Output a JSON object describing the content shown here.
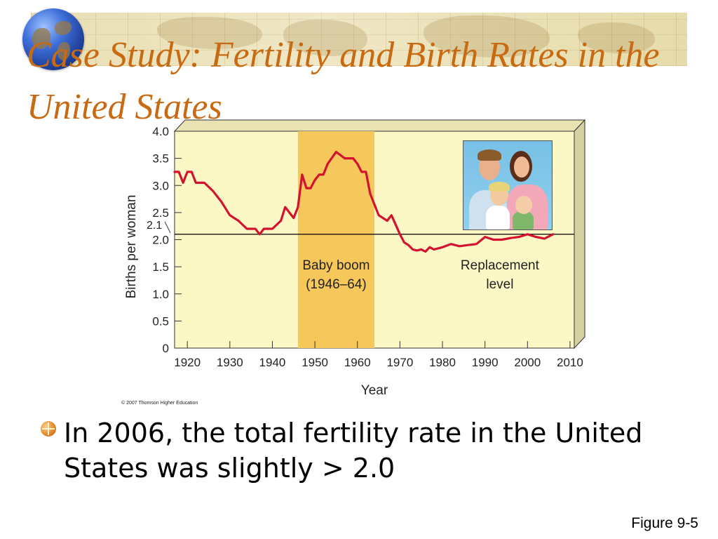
{
  "slide": {
    "title": "Case Study: Fertility and Birth Rates in the United States",
    "bullet": "In 2006, the total fertility rate in the United States was slightly > 2.0",
    "figure_label": "Figure 9-5",
    "copyright": "© 2007 Thomson Higher Education"
  },
  "colors": {
    "title": "#c86a12",
    "plot_background": "#fcf8c6",
    "baby_boom_band": "#f6c85c",
    "series_line": "#d2122e",
    "replacement_line": "#000000"
  },
  "icons": {
    "globe": "globe-icon",
    "bullet": "bullet-icon"
  },
  "chart_data": {
    "type": "line",
    "title": "",
    "xlabel": "Year",
    "ylabel": "Births per woman",
    "xlim": [
      1917,
      2011
    ],
    "ylim": [
      0,
      4.0
    ],
    "x_ticks": [
      1920,
      1930,
      1940,
      1950,
      1960,
      1970,
      1980,
      1990,
      2000,
      2010
    ],
    "y_ticks": [
      {
        "value": 0,
        "label": "0"
      },
      {
        "value": 0.5,
        "label": "0.5"
      },
      {
        "value": 1.0,
        "label": "1.0"
      },
      {
        "value": 1.5,
        "label": "1.5"
      },
      {
        "value": 2.0,
        "label": "2.0"
      },
      {
        "value": 2.5,
        "label": "2.5"
      },
      {
        "value": 3.0,
        "label": "3.0"
      },
      {
        "value": 3.5,
        "label": "3.5"
      },
      {
        "value": 4.0,
        "label": "4.0"
      }
    ],
    "grid": false,
    "series": [
      {
        "x": [
          1917,
          1918,
          1919,
          1920,
          1921,
          1922,
          1924,
          1926,
          1928,
          1930,
          1932,
          1934,
          1936,
          1937,
          1938,
          1940,
          1942,
          1943,
          1945,
          1946,
          1947,
          1948,
          1949,
          1950,
          1951,
          1952,
          1953,
          1955,
          1957,
          1958,
          1959,
          1960,
          1961,
          1962,
          1963,
          1964,
          1965,
          1967,
          1968,
          1970,
          1971,
          1972,
          1973,
          1974,
          1975,
          1976,
          1977,
          1978,
          1980,
          1982,
          1984,
          1986,
          1988,
          1990,
          1992,
          1994,
          1996,
          1998,
          2000,
          2002,
          2004,
          2006
        ],
        "values": [
          3.25,
          3.25,
          3.05,
          3.25,
          3.25,
          3.05,
          3.05,
          2.9,
          2.7,
          2.45,
          2.35,
          2.2,
          2.2,
          2.1,
          2.2,
          2.2,
          2.35,
          2.6,
          2.4,
          2.6,
          3.2,
          2.95,
          2.95,
          3.1,
          3.2,
          3.2,
          3.4,
          3.62,
          3.5,
          3.5,
          3.5,
          3.4,
          3.25,
          3.25,
          2.85,
          2.65,
          2.45,
          2.35,
          2.45,
          2.1,
          1.95,
          1.9,
          1.82,
          1.8,
          1.82,
          1.78,
          1.86,
          1.82,
          1.86,
          1.92,
          1.88,
          1.9,
          1.92,
          2.05,
          2.0,
          2.0,
          2.03,
          2.05,
          2.1,
          2.05,
          2.02,
          2.1
        ]
      }
    ],
    "reference_line": {
      "value": 2.1,
      "label": "2.1"
    },
    "shaded_region": {
      "x_start": 1946,
      "x_end": 1964,
      "label": [
        "Baby boom",
        "(1946–64)"
      ]
    },
    "annotations": [
      [
        "Replacement",
        "level"
      ]
    ]
  }
}
